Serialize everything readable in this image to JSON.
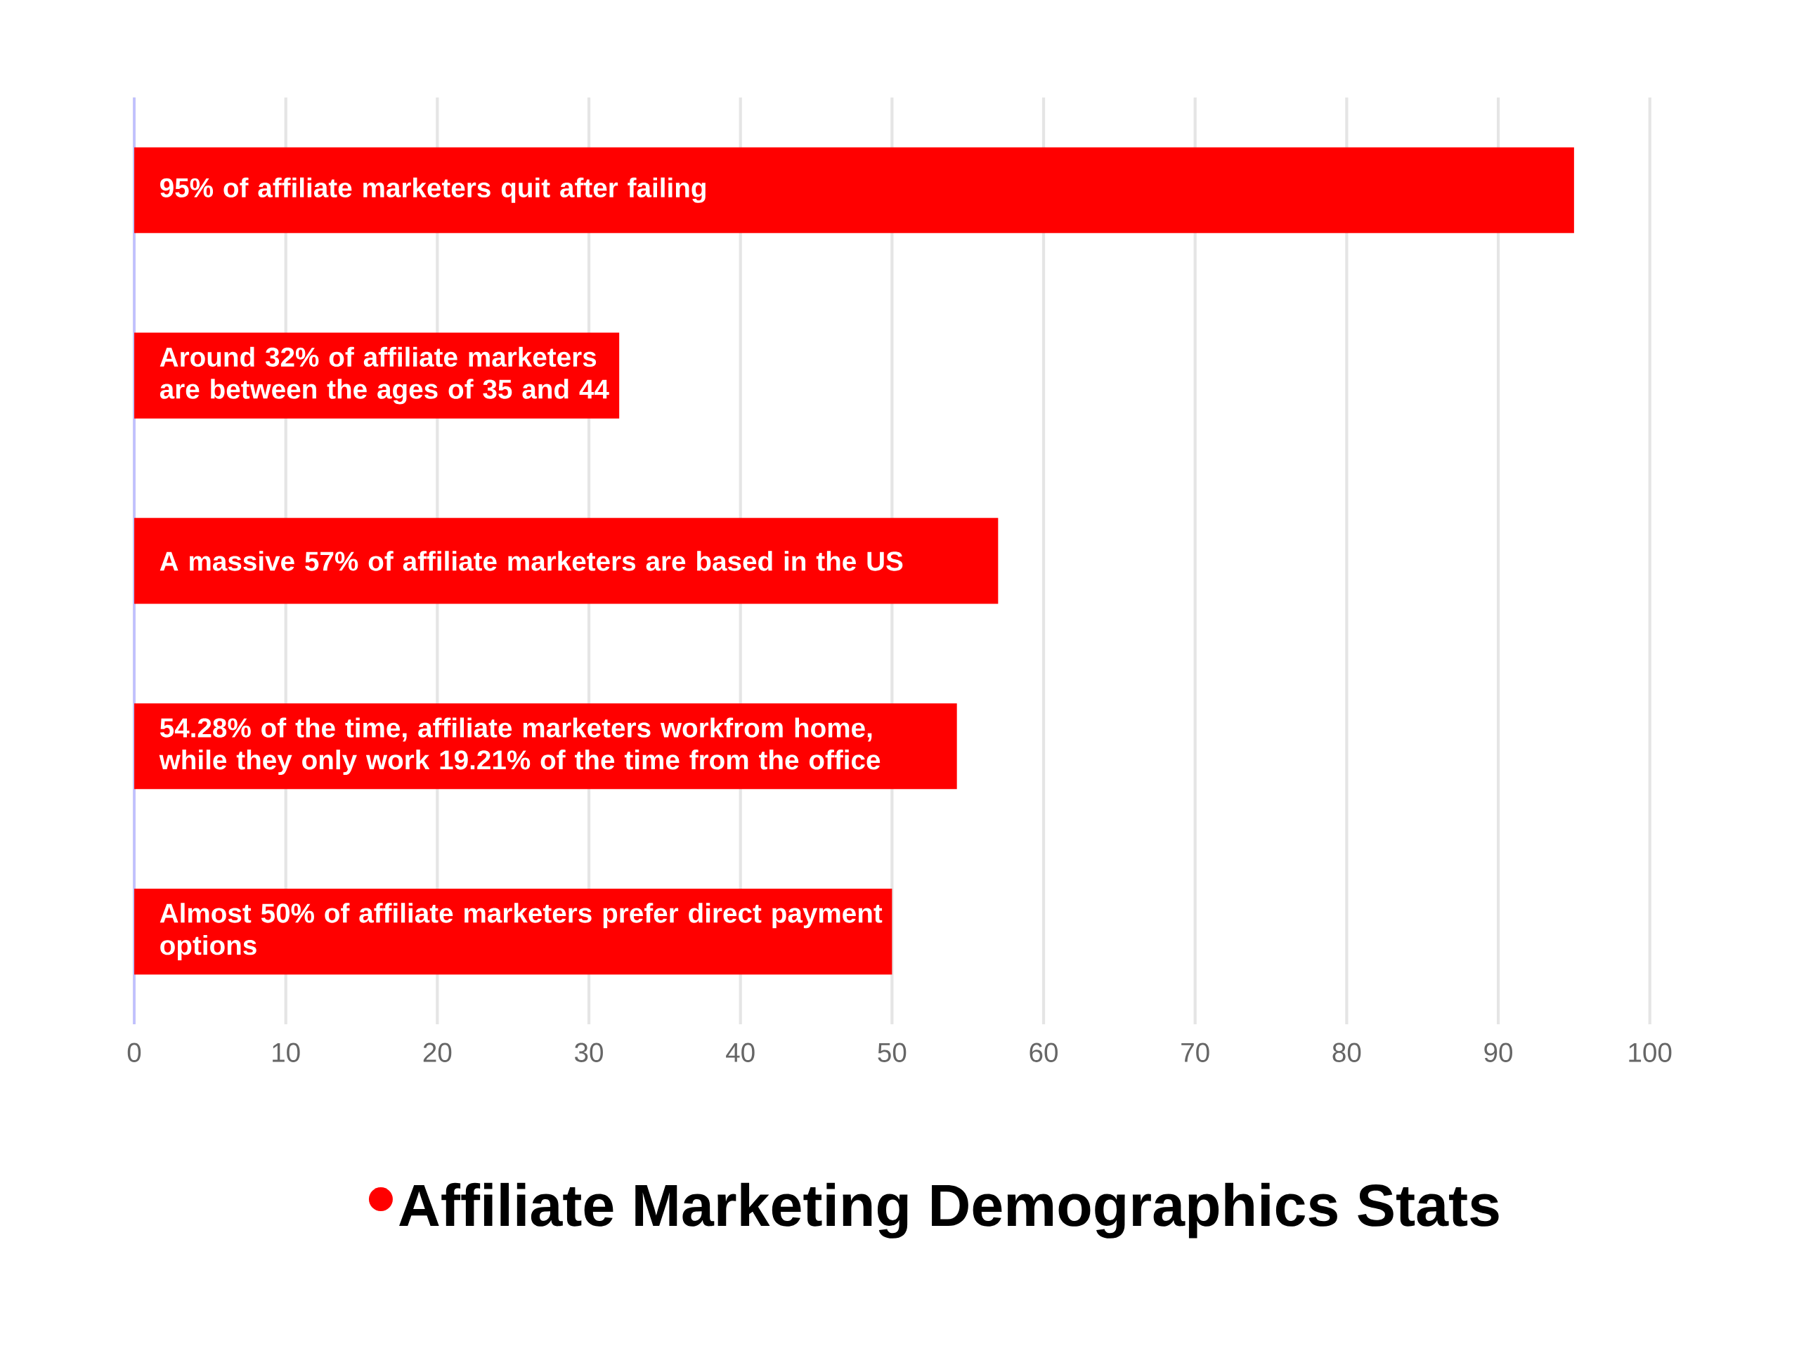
{
  "chart_data": {
    "type": "bar",
    "orientation": "horizontal",
    "categories": [
      "95% of affiliate marketers quit after failing",
      "Around 32% of affiliate marketers are between the ages of 35 and 44",
      "A massive 57% of affiliate marketers are based in the US",
      "54.28% of the time, affiliate marketers workfrom home, while they only work 19.21% of the time from the office",
      "Almost 50% of affiliate marketers prefer direct payment options"
    ],
    "series": [
      {
        "name": "Affiliate Marketing Demographics Stats",
        "color": "#ff0000",
        "values": [
          95,
          32,
          57,
          54.28,
          50
        ]
      }
    ],
    "xlim": [
      0,
      100
    ],
    "xticks": [
      0,
      10,
      20,
      30,
      40,
      50,
      60,
      70,
      80,
      90,
      100
    ],
    "grid": "x",
    "legend": "bottom"
  }
}
